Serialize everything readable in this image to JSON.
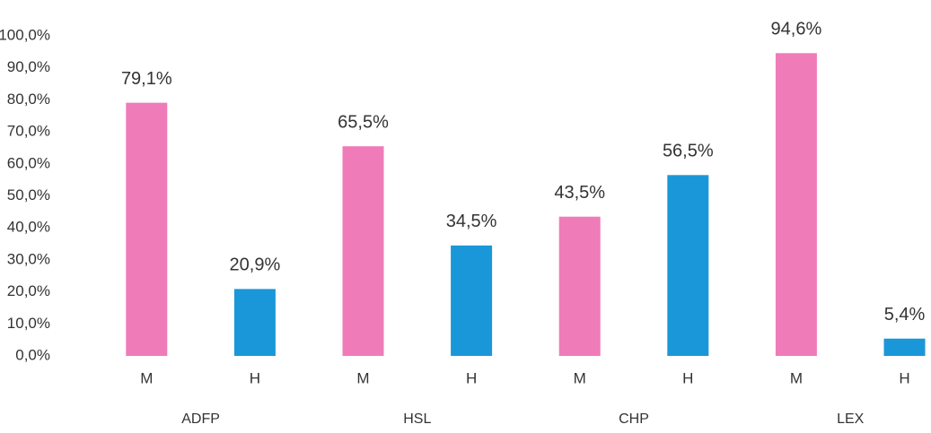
{
  "chart_data": {
    "type": "bar",
    "categories": [
      "M",
      "H",
      "M",
      "H",
      "M",
      "H",
      "M",
      "H"
    ],
    "groups": [
      "ADFP",
      "HSL",
      "CHP",
      "LEX"
    ],
    "values": [
      79.1,
      20.9,
      65.5,
      34.5,
      43.5,
      56.5,
      94.6,
      5.4
    ],
    "value_labels": [
      "79,1%",
      "20,9%",
      "65,5%",
      "34,5%",
      "43,5%",
      "56,5%",
      "94,6%",
      "5,4%"
    ],
    "colors": [
      "#f07bb9",
      "#1a97d8",
      "#f07bb9",
      "#1a97d8",
      "#f07bb9",
      "#1a97d8",
      "#f07bb9",
      "#1a97d8"
    ],
    "ylim": [
      0,
      100
    ],
    "yticks": [
      {
        "value": 0,
        "label": "0,0%"
      },
      {
        "value": 10,
        "label": "10,0%"
      },
      {
        "value": 20,
        "label": "20,0%"
      },
      {
        "value": 30,
        "label": "30,0%"
      },
      {
        "value": 40,
        "label": "40,0%"
      },
      {
        "value": 50,
        "label": "50,0%"
      },
      {
        "value": 60,
        "label": "60,0%"
      },
      {
        "value": 70,
        "label": "70,0%"
      },
      {
        "value": 80,
        "label": "80,0%"
      },
      {
        "value": 90,
        "label": "90,0%"
      },
      {
        "value": 100,
        "label": "100,0%"
      }
    ],
    "grid": false
  }
}
